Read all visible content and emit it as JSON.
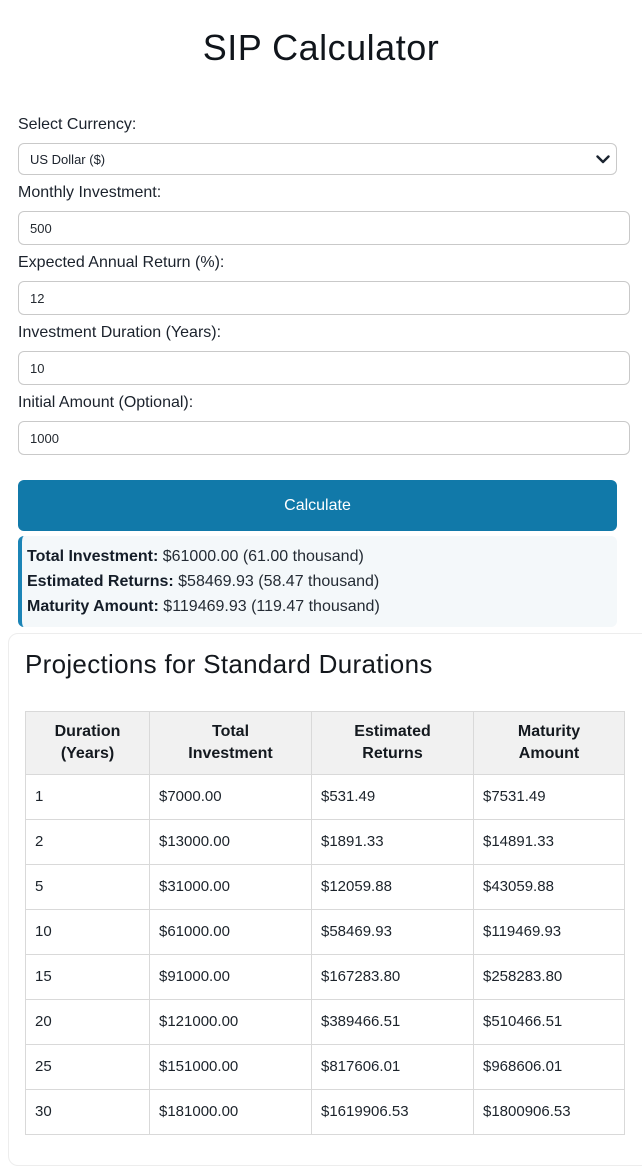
{
  "title": "SIP Calculator",
  "colors": {
    "accent": "#1179a9",
    "results_border": "#1b84b6",
    "results_background": "#f4f8fa",
    "table_header_background": "#f1f1f1"
  },
  "form": {
    "currency_label": "Select Currency:",
    "currency_value": "US Dollar ($)",
    "currency_icon": "chevron-down",
    "fields": [
      {
        "label": "Monthly Investment:",
        "value": "500"
      },
      {
        "label": "Expected Annual Return (%):",
        "value": "12"
      },
      {
        "label": "Investment Duration (Years):",
        "value": "10"
      },
      {
        "label": "Initial Amount (Optional):",
        "value": "1000"
      }
    ],
    "calculate_label": "Calculate"
  },
  "results": {
    "lines": [
      {
        "label": "Total Investment:",
        "value": "$61000.00 (61.00 thousand)"
      },
      {
        "label": "Estimated Returns:",
        "value": "$58469.93 (58.47 thousand)"
      },
      {
        "label": "Maturity Amount:",
        "value": "$119469.93 (119.47 thousand)"
      }
    ]
  },
  "projections": {
    "heading": "Projections for Standard Durations",
    "table": {
      "headers": [
        "Duration (Years)",
        "Total Investment",
        "Estimated Returns",
        "Maturity Amount"
      ],
      "rows": [
        [
          "1",
          "$7000.00",
          "$531.49",
          "$7531.49"
        ],
        [
          "2",
          "$13000.00",
          "$1891.33",
          "$14891.33"
        ],
        [
          "5",
          "$31000.00",
          "$12059.88",
          "$43059.88"
        ],
        [
          "10",
          "$61000.00",
          "$58469.93",
          "$119469.93"
        ],
        [
          "15",
          "$91000.00",
          "$167283.80",
          "$258283.80"
        ],
        [
          "20",
          "$121000.00",
          "$389466.51",
          "$510466.51"
        ],
        [
          "25",
          "$151000.00",
          "$817606.01",
          "$968606.01"
        ],
        [
          "30",
          "$181000.00",
          "$1619906.53",
          "$1800906.53"
        ]
      ]
    }
  }
}
